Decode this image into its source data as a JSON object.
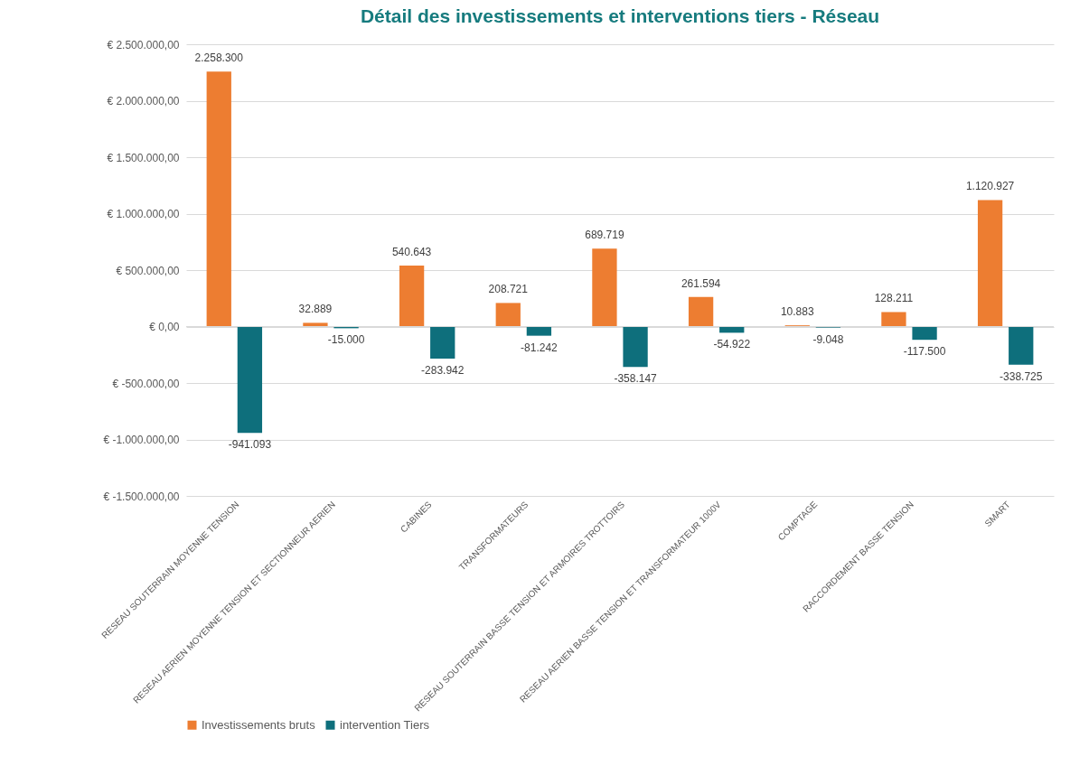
{
  "chart_data": {
    "type": "bar",
    "title": "Détail des investissements et interventions tiers - Réseau",
    "categories": [
      "RESEAU SOUTERRAIN MOYENNE TENSION",
      "RESEAU AERIEN MOYENNE TENSION ET SECTIONNEUR AERIEN",
      "CABINES",
      "TRANSFORMATEURS",
      "RESEAU SOUTERRAIN BASSE TENSION ET ARMOIRES TROTTOIRS",
      "RESEAU AERIEN BASSE TENSION ET TRANSFORMATEUR 1000V",
      "COMPTAGE",
      "RACCORDEMENT BASSE TENSION",
      "SMART"
    ],
    "series": [
      {
        "name": "Investissements bruts",
        "color": "#ed7d31",
        "values": [
          2258300,
          32889,
          540643,
          208721,
          689719,
          261594,
          10883,
          128211,
          1120927
        ],
        "value_labels": [
          "2.258.300",
          "32.889",
          "540.643",
          "208.721",
          "689.719",
          "261.594",
          "10.883",
          "128.211",
          "1.120.927"
        ]
      },
      {
        "name": "intervention Tiers",
        "color": "#0e6f7c",
        "values": [
          -941093,
          -15000,
          -283942,
          -81242,
          -358147,
          -54922,
          -9048,
          -117500,
          -338725
        ],
        "value_labels": [
          "-941.093",
          "-15.000",
          "-283.942",
          "-81.242",
          "-358.147",
          "-54.922",
          "-9.048",
          "-117.500",
          "-338.725"
        ]
      }
    ],
    "ylim": [
      -1500000,
      2500000
    ],
    "yticks": [
      {
        "value": -1500000,
        "label": "€ -1.500.000,00"
      },
      {
        "value": -1000000,
        "label": "€ -1.000.000,00"
      },
      {
        "value": -500000,
        "label": "€ -500.000,00"
      },
      {
        "value": 0,
        "label": "€ 0,00"
      },
      {
        "value": 500000,
        "label": "€ 500.000,00"
      },
      {
        "value": 1000000,
        "label": "€ 1.000.000,00"
      },
      {
        "value": 1500000,
        "label": "€ 1.500.000,00"
      },
      {
        "value": 2000000,
        "label": "€ 2.000.000,00"
      },
      {
        "value": 2500000,
        "label": "€ 2.500.000,00"
      }
    ],
    "grid": "y",
    "legend": "bottom"
  }
}
